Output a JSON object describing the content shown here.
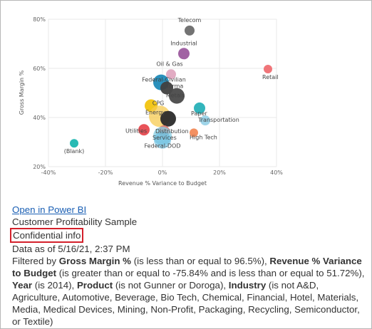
{
  "chart_data": {
    "type": "scatter",
    "title": "",
    "xlabel": "Revenue % Variance to Budget",
    "ylabel": "Gross Margin %",
    "xlim": [
      -40,
      40
    ],
    "ylim": [
      20,
      80
    ],
    "x_ticks": [
      "-40%",
      "-20%",
      "0%",
      "20%",
      "40%"
    ],
    "y_ticks": [
      "20%",
      "40%",
      "60%",
      "80%"
    ],
    "grid": true,
    "points": [
      {
        "label": "Telecom",
        "x": 9.5,
        "y": 75.4,
        "size": 7,
        "color": "#6b6b6b"
      },
      {
        "label": "Industrial",
        "x": 7.5,
        "y": 66.0,
        "size": 8,
        "color": "#9c5a9e"
      },
      {
        "label": "Oil & Gas",
        "x": 3,
        "y": 57.6,
        "size": 7,
        "color": "#e0a8c0"
      },
      {
        "label": "Federal-Civilian",
        "x": -0.5,
        "y": 54.3,
        "size": 11,
        "color": "#1f8ab8"
      },
      {
        "label": "Pharma",
        "x": 1.5,
        "y": 52.0,
        "size": 9,
        "color": "#404040"
      },
      {
        "label": "Metals",
        "x": 5,
        "y": 48.8,
        "size": 11,
        "color": "#4a4a4a"
      },
      {
        "label": "Retail",
        "x": 37,
        "y": 59.7,
        "size": 6,
        "color": "#ef6e72"
      },
      {
        "label": "Paper",
        "x": 13,
        "y": 43.8,
        "size": 8,
        "color": "#28b1b8"
      },
      {
        "label": "CPG",
        "x": -4,
        "y": 44.8,
        "size": 9,
        "color": "#f2c40f"
      },
      {
        "label": "Energy",
        "x": -1,
        "y": 40.5,
        "size": 15,
        "color": "#f7cb50",
        "opacity": 0.75
      },
      {
        "label": "",
        "x": 2,
        "y": 39.5,
        "size": 11,
        "color": "#2b2b2b"
      },
      {
        "label": "Transportation",
        "x": 15,
        "y": 38.8,
        "size": 7,
        "color": "#9ad3e8"
      },
      {
        "label": "Utilities",
        "x": -6.5,
        "y": 35.0,
        "size": 8,
        "color": "#e84a50"
      },
      {
        "label": "Distribution",
        "x": 0.5,
        "y": 34.5,
        "size": 8,
        "color": "#e07a6e"
      },
      {
        "label": "Services",
        "x": 0,
        "y": 32.5,
        "size": 13,
        "color": "#84cde3",
        "opacity": 0.75
      },
      {
        "label": "High Tech",
        "x": 11,
        "y": 33.8,
        "size": 6,
        "color": "#f28a58"
      },
      {
        "label": "Federal-DOD",
        "x": 0,
        "y": 30.8,
        "size": 12,
        "color": "#6cbfe0",
        "opacity": 0.65
      },
      {
        "label": "(Blank)",
        "x": -31,
        "y": 29.5,
        "size": 6,
        "color": "#1bb6b0"
      }
    ]
  },
  "info": {
    "open_link": "Open in Power BI",
    "report_name": "Customer Profitability Sample",
    "confidential": "Confidential info",
    "data_as_of": "Data as of 5/16/21, 2:37 PM",
    "filter_1_prefix": "Filtered by ",
    "filter_1_field": "Gross Margin %",
    "filter_1_cond": " (is less than or equal to 96.5%), ",
    "filter_2_field": "Revenue % Variance to Budget",
    "filter_2_cond": " (is greater than or equal to -75.84% and is less than or equal to 51.72%), ",
    "filter_3_field": "Year",
    "filter_3_cond": " (is 2014), ",
    "filter_4_field": "Product",
    "filter_4_cond": " (is not Gunner or Doroga), ",
    "filter_5_field": "Industry",
    "filter_5_cond": " (is not A&D, Agriculture, Automotive, Beverage, Bio Tech, Chemical, Financial, Hotel, Materials, Media, Medical Devices, Mining, Non-Profit, Packaging, Recycling, Semiconductor, or Textile)"
  }
}
